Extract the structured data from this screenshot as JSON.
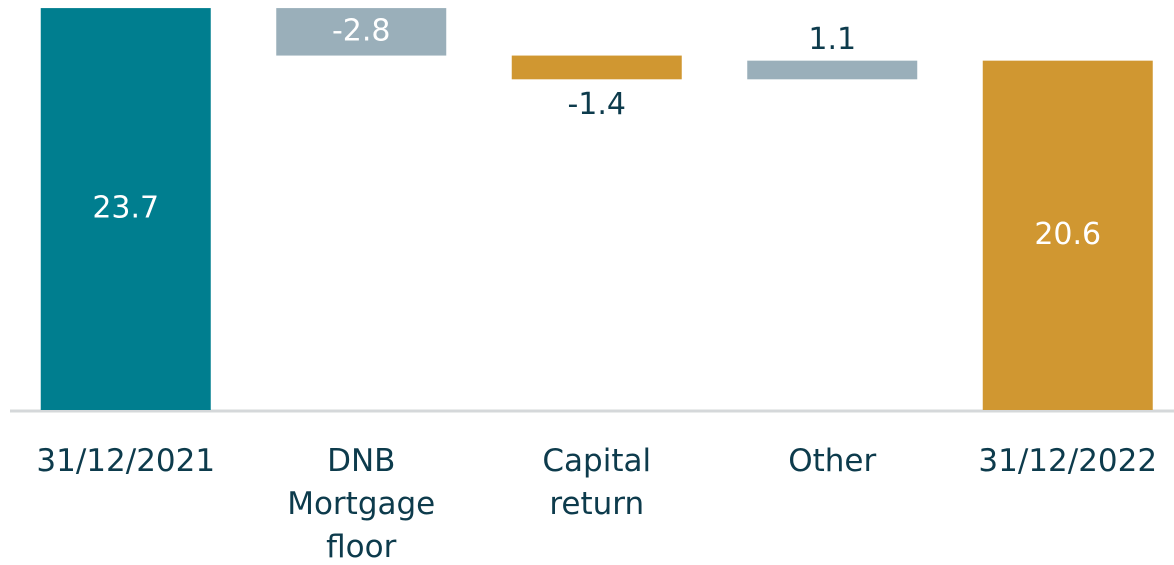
{
  "chart_data": {
    "type": "waterfall",
    "categories": [
      "31/12/2021",
      "DNB Mortgage floor",
      "Capital return",
      "Other",
      "31/12/2022"
    ],
    "values": [
      23.7,
      -2.8,
      -1.4,
      1.1,
      20.6
    ],
    "totals": [
      true,
      false,
      false,
      false,
      true
    ],
    "colors": [
      "#007e8f",
      "#9aafba",
      "#d09731",
      "#9aafba",
      "#d09731"
    ],
    "ylim": [
      0,
      24
    ]
  }
}
